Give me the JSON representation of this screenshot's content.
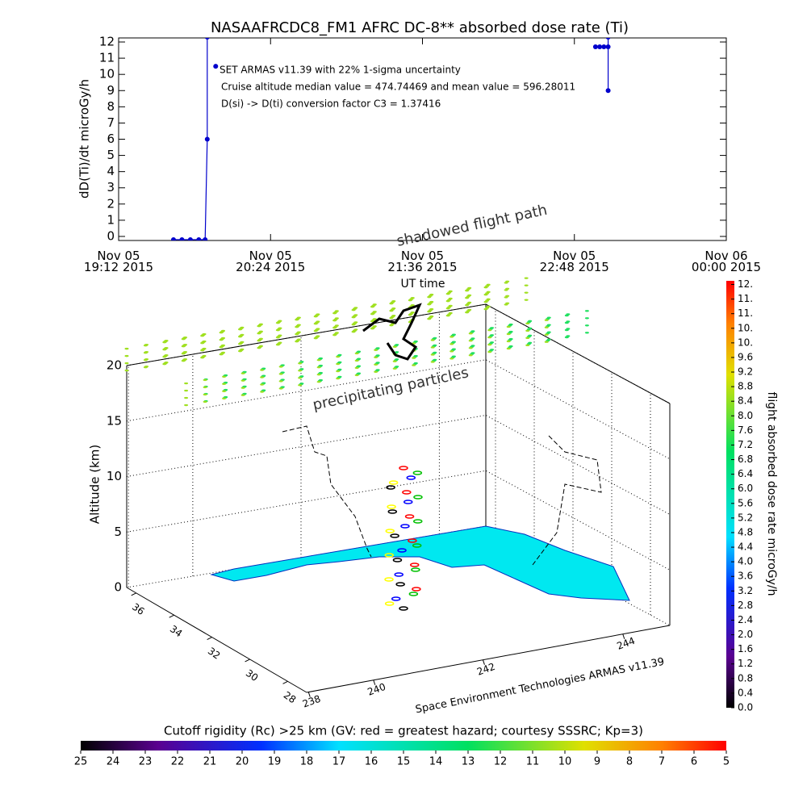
{
  "chart_data": [
    {
      "type": "line",
      "title": "NASAAFRCDC8_FM1 AFRC DC-8** absorbed dose rate (Ti)",
      "y_label": "dD(Ti)/dt microGy/h",
      "x_label": "UT time",
      "annotations": [
        "SET ARMAS v11.39 with 22% 1-sigma uncertainty",
        "Cruise altitude median value = 474.74469 and mean value = 596.28011",
        "D(si) -> D(ti) conversion factor C3 = 1.37416"
      ],
      "xlim": [
        "2015-11-05 19:12",
        "2015-11-06 00:00"
      ],
      "xticks": [
        {
          "value": "2015-11-05 19:12",
          "label": "Nov 05\n19:12 2015"
        },
        {
          "value": "2015-11-05 20:24",
          "label": "Nov 05\n20:24 2015"
        },
        {
          "value": "2015-11-05 21:36",
          "label": "Nov 05\n21:36 2015"
        },
        {
          "value": "2015-11-05 22:48",
          "label": "Nov 05\n22:48 2015"
        },
        {
          "value": "2015-11-06 00:00",
          "label": "Nov 06\n00:00 2015"
        }
      ],
      "ylim": [
        -0.25,
        12.25
      ],
      "yticks": [
        0,
        1,
        2,
        3,
        4,
        5,
        6,
        7,
        8,
        9,
        10,
        11,
        12
      ],
      "series": [
        {
          "color": "#0000cc",
          "x": [
            "2015-11-05 19:38",
            "2015-11-05 19:42",
            "2015-11-05 19:46",
            "2015-11-05 19:50",
            "2015-11-05 19:53",
            "2015-11-05 19:54",
            "2015-11-05 19:54"
          ],
          "values": [
            -0.2,
            -0.2,
            -0.2,
            -0.2,
            -0.2,
            6,
            12.3
          ]
        },
        {
          "color": "#0000cc",
          "x": [
            "2015-11-05 19:58"
          ],
          "values": [
            10.5
          ]
        },
        {
          "color": "#0000cc",
          "x": [
            "2015-11-05 22:58",
            "2015-11-05 23:00",
            "2015-11-05 23:02",
            "2015-11-05 23:04",
            "2015-11-05 23:04",
            "2015-11-05 23:04"
          ],
          "values": [
            11.7,
            11.7,
            11.7,
            11.7,
            12.3,
            9
          ]
        }
      ]
    },
    {
      "type": "surface3d",
      "z_label": "Altitude (km)",
      "zlim": [
        0,
        20
      ],
      "zticks": [
        0,
        5,
        10,
        15,
        20
      ],
      "ylim": [
        36.5,
        27
      ],
      "yticks": [
        36,
        34,
        32,
        30,
        28
      ],
      "xlim": [
        237.8,
        244.6
      ],
      "xticks": [
        238,
        240,
        242,
        244
      ],
      "annotations": [
        "shadowed flight path",
        "precipitating particles",
        "Space Environment Technologies ARMAS v11.39"
      ],
      "colorbar": {
        "title": "flight absorbed dose rate microGy/h",
        "lim": [
          0,
          11.7
        ],
        "ticks": [
          {
            "value": 0,
            "label": "0.0"
          },
          0.4,
          0.8,
          1.2,
          1.6,
          {
            "value": 2,
            "label": "2.0"
          },
          2.4,
          2.8,
          3.2,
          3.6,
          {
            "value": 4,
            "label": "4.0"
          },
          4.4,
          4.8,
          5.2,
          5.6,
          {
            "value": 6,
            "label": "6.0"
          },
          6.4,
          6.8,
          7.2,
          7.6,
          {
            "value": 8,
            "label": "8.0"
          },
          8.4,
          8.8,
          9.2,
          9.6,
          {
            "value": 10,
            "label": "10."
          },
          {
            "value": 10.4,
            "label": "10."
          },
          {
            "value": 10.8,
            "label": "11."
          },
          {
            "value": 11.2,
            "label": "11."
          },
          {
            "value": 11.6,
            "label": "12."
          }
        ]
      },
      "colorbar2": {
        "title": "Cutoff rigidity (Rc) >25 km (GV: red = greatest hazard; courtesy SSSRC; Kp=3)",
        "lim": [
          25,
          5
        ],
        "ticks": [
          25,
          24,
          23,
          22,
          21,
          20,
          19,
          18,
          17,
          16,
          15,
          14,
          13,
          12,
          11,
          10,
          9,
          8,
          7,
          6,
          5
        ]
      }
    }
  ]
}
